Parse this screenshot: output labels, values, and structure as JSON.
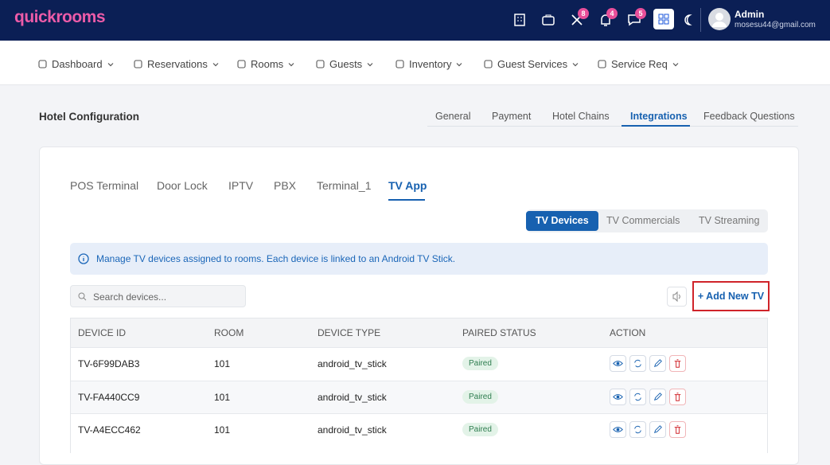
{
  "brand": "quickrooms",
  "header": {
    "badges": [
      "8",
      "4",
      "5"
    ],
    "user": {
      "name": "Admin",
      "email": "mosesu44@gmail.com"
    }
  },
  "nav": [
    "Dashboard",
    "Reservations",
    "Rooms",
    "Guests",
    "Inventory",
    "Guest Services",
    "Service Req"
  ],
  "page": {
    "title": "Hotel Configuration",
    "tabs": [
      "General",
      "Payment",
      "Hotel Chains",
      "Integrations",
      "Feedback Questions"
    ]
  },
  "integrations": {
    "tabs": [
      "POS Terminal",
      "Door Lock",
      "IPTV",
      "PBX",
      "Terminal_1",
      "TV App"
    ],
    "subtabs": [
      "TV Devices",
      "TV Commercials",
      "TV Streaming"
    ],
    "info": "Manage TV devices assigned to rooms. Each device is linked to an Android TV Stick.",
    "search_placeholder": "Search devices...",
    "add_button": "+ Add New TV",
    "table": {
      "columns": [
        "DEVICE ID",
        "ROOM",
        "DEVICE TYPE",
        "PAIRED STATUS",
        "ACTION"
      ],
      "rows": [
        [
          "TV-6F99DAB3",
          "101",
          "android_tv_stick",
          "Paired"
        ],
        [
          "TV-FA440CC9",
          "101",
          "android_tv_stick",
          "Paired"
        ],
        [
          "TV-A4ECC462",
          "101",
          "android_tv_stick",
          "Paired"
        ]
      ]
    }
  }
}
